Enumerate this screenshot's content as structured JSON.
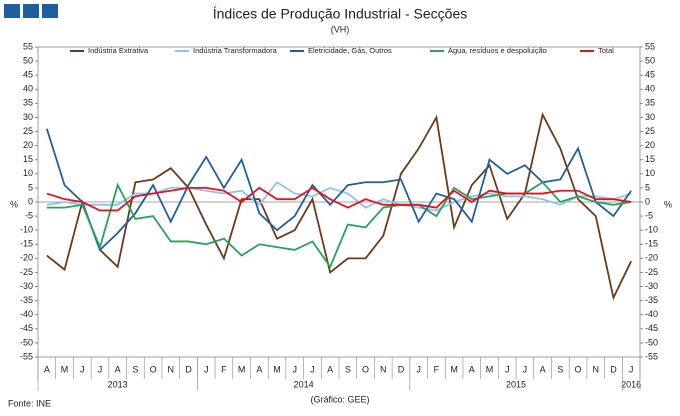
{
  "chart_data": {
    "type": "line",
    "title": "Índices de Produção Industrial - Secções",
    "subtitle": "(VH)",
    "y_label": "%",
    "source": "Fonte: INE",
    "credit": "(Gráfico: GEE)",
    "categories": [
      "A",
      "M",
      "J",
      "J",
      "A",
      "S",
      "O",
      "N",
      "D",
      "J",
      "F",
      "M",
      "A",
      "M",
      "J",
      "J",
      "A",
      "S",
      "O",
      "N",
      "D",
      "J",
      "F",
      "M",
      "A",
      "M",
      "J",
      "J",
      "A",
      "S",
      "O",
      "N",
      "D",
      "J"
    ],
    "x_groups": [
      {
        "label": "2013",
        "count": 9
      },
      {
        "label": "2014",
        "count": 12
      },
      {
        "label": "2015",
        "count": 12
      },
      {
        "label": "2016",
        "count": 1
      }
    ],
    "ylim": [
      -55,
      55
    ],
    "yticks": [
      -55,
      -50,
      -45,
      -40,
      -35,
      -30,
      -25,
      -20,
      -15,
      -10,
      -5,
      0,
      5,
      10,
      15,
      20,
      25,
      30,
      35,
      40,
      45,
      50,
      55
    ],
    "grid": false,
    "legend": "top",
    "series": [
      {
        "name": "Indústria Extrativa",
        "color": "#6b3a1a",
        "values": [
          -19,
          -24,
          0,
          -17,
          -23,
          7,
          8,
          12,
          5,
          -8,
          -20,
          1,
          1,
          -13,
          -10,
          1,
          -25,
          -20,
          -20,
          -12,
          10,
          19,
          30,
          -9,
          6,
          13,
          -6,
          3,
          31,
          19,
          1,
          -5,
          -34,
          -21
        ]
      },
      {
        "name": "Indústria Transformadora",
        "color": "#8fc3ea",
        "values": [
          -1,
          0,
          -1,
          -1,
          -1,
          3,
          3,
          5,
          5,
          4,
          3,
          4,
          -1,
          7,
          3,
          2,
          5,
          3,
          -2,
          1,
          -1,
          -2,
          -3,
          0,
          2,
          3,
          2,
          2,
          1,
          -1,
          2,
          2,
          1,
          3
        ]
      },
      {
        "name": "Eletricidade, Gás, Outros",
        "color": "#1f5f9f",
        "values": [
          26,
          6,
          0,
          -17,
          -11,
          -4,
          6,
          -7,
          6,
          16,
          5,
          15,
          -4,
          -10,
          -5,
          6,
          -1,
          6,
          7,
          7,
          8,
          -7,
          3,
          1,
          -7,
          15,
          10,
          13,
          7,
          8,
          19,
          0,
          -5,
          4
        ]
      },
      {
        "name": "Água, resíduos e despoluição",
        "color": "#27a35a",
        "values": [
          -2,
          -2,
          -1,
          -16,
          6,
          -6,
          -5,
          -14,
          -14,
          -15,
          -13,
          -19,
          -15,
          -16,
          -17,
          -14,
          -23,
          -8,
          -9,
          -2,
          -1,
          -1,
          -5,
          5,
          1,
          2,
          3,
          3,
          7,
          0,
          2,
          0,
          -1,
          0
        ]
      },
      {
        "name": "Total",
        "color": "#e0141e",
        "values": [
          3,
          1,
          0,
          -3,
          -3,
          2,
          3,
          4,
          5,
          5,
          4,
          0,
          5,
          1,
          1,
          5,
          1,
          -2,
          1,
          -1,
          -1,
          -1,
          -2,
          4,
          0,
          4,
          3,
          3,
          3,
          4,
          4,
          1,
          1,
          0
        ]
      }
    ]
  }
}
